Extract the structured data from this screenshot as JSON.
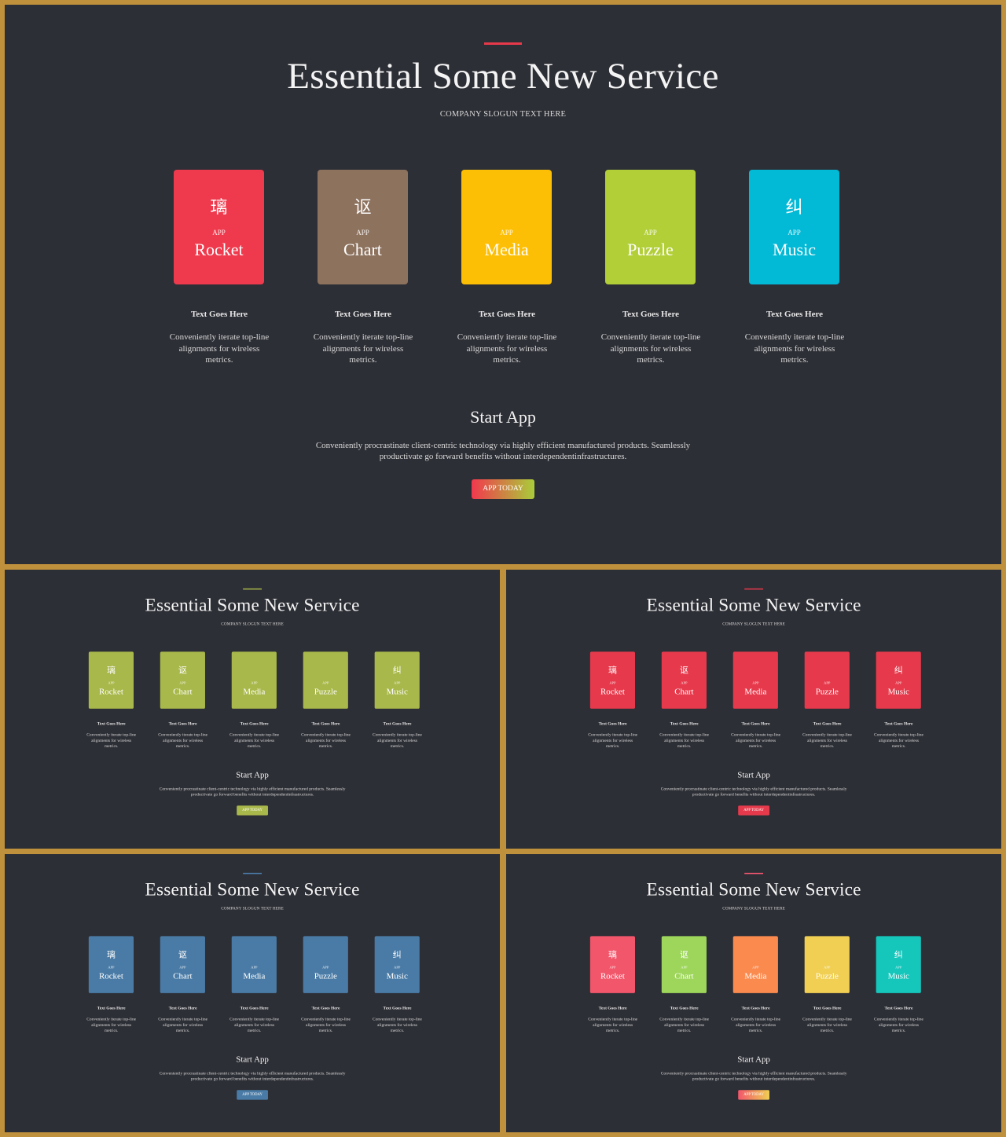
{
  "colors": {
    "frame": "#c0913d",
    "slide_bg": "#2d2f36"
  },
  "slides": [
    {
      "id": "main",
      "title": "Essential Some New Service",
      "slogan": "COMPANY SLOGUN TEXT HERE",
      "accent_color": "#e8394b",
      "cards": [
        {
          "glyph": "璃",
          "small": "APP",
          "name": "Rocket",
          "color": "#ef3a4d",
          "heading": "Text Goes Here",
          "desc": "Conveniently iterate top-line alignments for wireless metrics."
        },
        {
          "glyph": "讴",
          "small": "APP",
          "name": "Chart",
          "color": "#8d725e",
          "heading": "Text Goes Here",
          "desc": "Conveniently iterate top-line alignments for wireless metrics."
        },
        {
          "glyph": "",
          "small": "APP",
          "name": "Media",
          "color": "#fdbf05",
          "heading": "Text Goes Here",
          "desc": "Conveniently iterate top-line alignments for wireless metrics."
        },
        {
          "glyph": "",
          "small": "APP",
          "name": "Puzzle",
          "color": "#b2cf38",
          "heading": "Text Goes Here",
          "desc": "Conveniently iterate top-line alignments for wireless metrics."
        },
        {
          "glyph": "纠",
          "small": "APP",
          "name": "Music",
          "color": "#02b9d6",
          "heading": "Text Goes Here",
          "desc": "Conveniently iterate top-line alignments for wireless metrics."
        }
      ],
      "start_title": "Start App",
      "start_desc": "Conveniently procrastinate client-centric technology via highly efficient manufactured products. Seamlessly productivate go forward benefits without interdependentinfrastructures.",
      "cta_label": "APP TODAY",
      "cta_colors": [
        "#f2384d",
        "#a9cd3a"
      ]
    },
    {
      "id": "green",
      "title": "Essential Some New Service",
      "slogan": "COMPANY SLOGUN TEXT HERE",
      "accent_color": "#a9b84a",
      "cards": [
        {
          "glyph": "璃",
          "small": "APP",
          "name": "Rocket",
          "color": "#a9b84a",
          "heading": "Text Goes Here",
          "desc": "Conveniently iterate top-line alignments for wireless metrics."
        },
        {
          "glyph": "讴",
          "small": "APP",
          "name": "Chart",
          "color": "#a9b84a",
          "heading": "Text Goes Here",
          "desc": "Conveniently iterate top-line alignments for wireless metrics."
        },
        {
          "glyph": "",
          "small": "APP",
          "name": "Media",
          "color": "#a9b84a",
          "heading": "Text Goes Here",
          "desc": "Conveniently iterate top-line alignments for wireless metrics."
        },
        {
          "glyph": "",
          "small": "APP",
          "name": "Puzzle",
          "color": "#a9b84a",
          "heading": "Text Goes Here",
          "desc": "Conveniently iterate top-line alignments for wireless metrics."
        },
        {
          "glyph": "纠",
          "small": "APP",
          "name": "Music",
          "color": "#a9b84a",
          "heading": "Text Goes Here",
          "desc": "Conveniently iterate top-line alignments for wireless metrics."
        }
      ],
      "start_title": "Start App",
      "start_desc": "Conveniently procrastinate client-centric technology via highly efficient manufactured products. Seamlessly productivate go forward benefits without interdependentinfrastructures.",
      "cta_label": "APP TODAY",
      "cta_colors": [
        "#a9b84a",
        "#a9b84a"
      ]
    },
    {
      "id": "red",
      "title": "Essential Some New Service",
      "slogan": "COMPANY SLOGUN TEXT HERE",
      "accent_color": "#e8394b",
      "cards": [
        {
          "glyph": "璃",
          "small": "APP",
          "name": "Rocket",
          "color": "#e63a4c",
          "heading": "Text Goes Here",
          "desc": "Conveniently iterate top-line alignments for wireless metrics."
        },
        {
          "glyph": "讴",
          "small": "APP",
          "name": "Chart",
          "color": "#e63a4c",
          "heading": "Text Goes Here",
          "desc": "Conveniently iterate top-line alignments for wireless metrics."
        },
        {
          "glyph": "",
          "small": "APP",
          "name": "Media",
          "color": "#e63a4c",
          "heading": "Text Goes Here",
          "desc": "Conveniently iterate top-line alignments for wireless metrics."
        },
        {
          "glyph": "",
          "small": "APP",
          "name": "Puzzle",
          "color": "#e63a4c",
          "heading": "Text Goes Here",
          "desc": "Conveniently iterate top-line alignments for wireless metrics."
        },
        {
          "glyph": "纠",
          "small": "APP",
          "name": "Music",
          "color": "#e63a4c",
          "heading": "Text Goes Here",
          "desc": "Conveniently iterate top-line alignments for wireless metrics."
        }
      ],
      "start_title": "Start App",
      "start_desc": "Conveniently procrastinate client-centric technology via highly efficient manufactured products. Seamlessly productivate go forward benefits without interdependentinfrastructures.",
      "cta_label": "APP TODAY",
      "cta_colors": [
        "#e63a4c",
        "#e63a4c"
      ]
    },
    {
      "id": "blue",
      "title": "Essential Some New Service",
      "slogan": "COMPANY SLOGUN TEXT HERE",
      "accent_color": "#4a7aa8",
      "cards": [
        {
          "glyph": "璃",
          "small": "APP",
          "name": "Rocket",
          "color": "#4a7ba6",
          "heading": "Text Goes Here",
          "desc": "Conveniently iterate top-line alignments for wireless metrics."
        },
        {
          "glyph": "讴",
          "small": "APP",
          "name": "Chart",
          "color": "#4a7ba6",
          "heading": "Text Goes Here",
          "desc": "Conveniently iterate top-line alignments for wireless metrics."
        },
        {
          "glyph": "",
          "small": "APP",
          "name": "Media",
          "color": "#4a7ba6",
          "heading": "Text Goes Here",
          "desc": "Conveniently iterate top-line alignments for wireless metrics."
        },
        {
          "glyph": "",
          "small": "APP",
          "name": "Puzzle",
          "color": "#4a7ba6",
          "heading": "Text Goes Here",
          "desc": "Conveniently iterate top-line alignments for wireless metrics."
        },
        {
          "glyph": "纠",
          "small": "APP",
          "name": "Music",
          "color": "#4a7ba6",
          "heading": "Text Goes Here",
          "desc": "Conveniently iterate top-line alignments for wireless metrics."
        }
      ],
      "start_title": "Start App",
      "start_desc": "Conveniently procrastinate client-centric technology via highly efficient manufactured products. Seamlessly productivate go forward benefits without interdependentinfrastructures.",
      "cta_label": "APP TODAY",
      "cta_colors": [
        "#4a7ba6",
        "#4a7ba6"
      ]
    },
    {
      "id": "multi",
      "title": "Essential Some New Service",
      "slogan": "COMPANY SLOGUN TEXT HERE",
      "accent_color": "#f0566e",
      "cards": [
        {
          "glyph": "璃",
          "small": "APP",
          "name": "Rocket",
          "color": "#f2566b",
          "heading": "Text Goes Here",
          "desc": "Conveniently iterate top-line alignments for wireless metrics."
        },
        {
          "glyph": "讴",
          "small": "APP",
          "name": "Chart",
          "color": "#9dd65a",
          "heading": "Text Goes Here",
          "desc": "Conveniently iterate top-line alignments for wireless metrics."
        },
        {
          "glyph": "",
          "small": "APP",
          "name": "Media",
          "color": "#fb8a4f",
          "heading": "Text Goes Here",
          "desc": "Conveniently iterate top-line alignments for wireless metrics."
        },
        {
          "glyph": "",
          "small": "APP",
          "name": "Puzzle",
          "color": "#f0cf53",
          "heading": "Text Goes Here",
          "desc": "Conveniently iterate top-line alignments for wireless metrics."
        },
        {
          "glyph": "纠",
          "small": "APP",
          "name": "Music",
          "color": "#15c6bb",
          "heading": "Text Goes Here",
          "desc": "Conveniently iterate top-line alignments for wireless metrics."
        }
      ],
      "start_title": "Start App",
      "start_desc": "Conveniently procrastinate client-centric technology via highly efficient manufactured products. Seamlessly productivate go forward benefits without interdependentinfrastructures.",
      "cta_label": "APP TODAY",
      "cta_colors": [
        "#f2566b",
        "#f0cf53"
      ]
    }
  ]
}
